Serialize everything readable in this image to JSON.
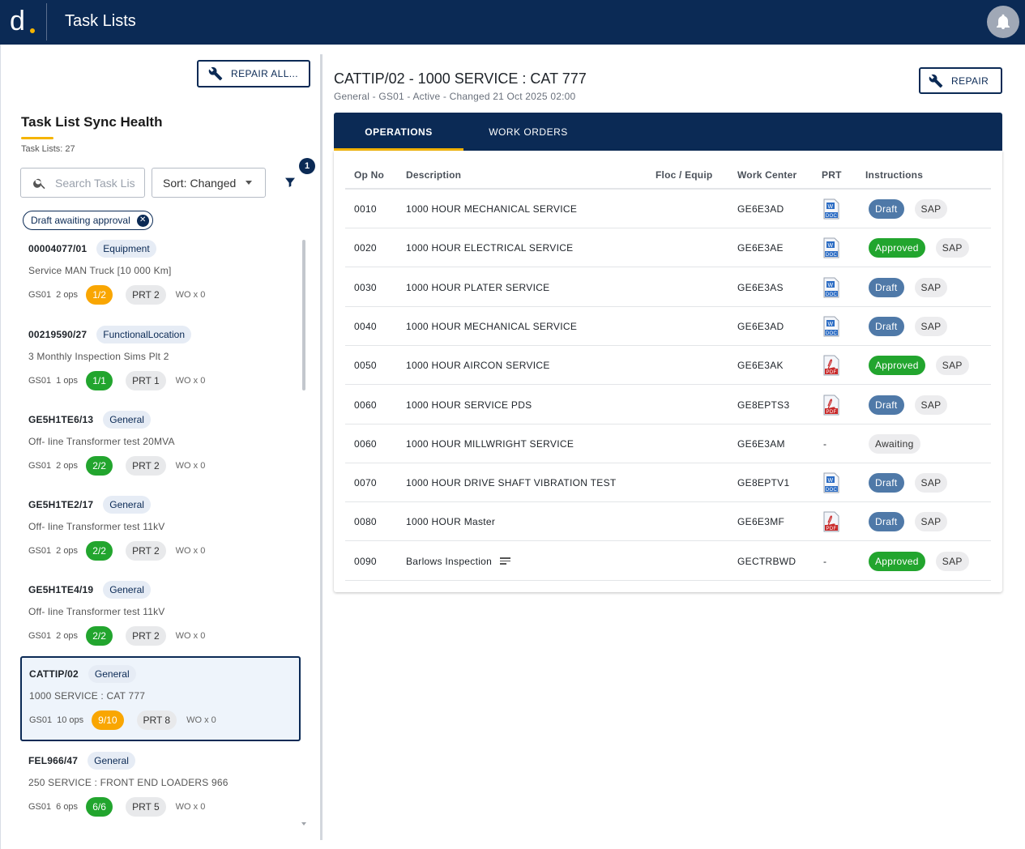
{
  "app": {
    "title": "Task Lists",
    "logo_icon": "d-logo-icon",
    "brand_color": "#0b2a55",
    "accent_color": "#f5b400"
  },
  "left": {
    "repair_all_label": "REPAIR ALL...",
    "sync_title": "Task List Sync Health",
    "task_count": "Task Lists: 27",
    "search_placeholder": "Search Task Lis",
    "sort_label": "Sort: Changed",
    "filter_badge": "1",
    "active_filter": "Draft awaiting approval",
    "cards": [
      {
        "id": "00004077/01",
        "type": "Equipment",
        "desc": "Service MAN Truck [10 000 Km]",
        "plant": "GS01",
        "ops": "2 ops",
        "ratio": "1/2",
        "ratio_color": "orange",
        "prt": "PRT 2",
        "wo": "WO x 0"
      },
      {
        "id": "00219590/27",
        "type": "FunctionalLocation",
        "desc": "3 Monthly Inspection Sims Plt 2",
        "plant": "GS01",
        "ops": "1 ops",
        "ratio": "1/1",
        "ratio_color": "green",
        "prt": "PRT 1",
        "wo": "WO x 0"
      },
      {
        "id": "GE5H1TE6/13",
        "type": "General",
        "desc": "Off- line Transformer test 20MVA",
        "plant": "GS01",
        "ops": "2 ops",
        "ratio": "2/2",
        "ratio_color": "green",
        "prt": "PRT 2",
        "wo": "WO x 0"
      },
      {
        "id": "GE5H1TE2/17",
        "type": "General",
        "desc": "Off- line Transformer test 11kV",
        "plant": "GS01",
        "ops": "2 ops",
        "ratio": "2/2",
        "ratio_color": "green",
        "prt": "PRT 2",
        "wo": "WO x 0"
      },
      {
        "id": "GE5H1TE4/19",
        "type": "General",
        "desc": "Off- line Transformer test 11kV",
        "plant": "GS01",
        "ops": "2 ops",
        "ratio": "2/2",
        "ratio_color": "green",
        "prt": "PRT 2",
        "wo": "WO x 0"
      },
      {
        "id": "CATTIP/02",
        "type": "General",
        "desc": "1000 SERVICE : CAT 777",
        "plant": "GS01",
        "ops": "10 ops",
        "ratio": "9/10",
        "ratio_color": "orange",
        "prt": "PRT 8",
        "wo": "WO x 0",
        "selected": true
      },
      {
        "id": "FEL966/47",
        "type": "General",
        "desc": "250 SERVICE : FRONT END LOADERS 966",
        "plant": "GS01",
        "ops": "6 ops",
        "ratio": "6/6",
        "ratio_color": "green",
        "prt": "PRT 5",
        "wo": "WO x 0"
      }
    ]
  },
  "detail": {
    "title": "CATTIP/02 - 1000 SERVICE : CAT 777",
    "subtitle": "General - GS01 - Active - Changed 21 Oct 2025 02:00",
    "repair_label": "REPAIR",
    "tabs": [
      "OPERATIONS",
      "WORK ORDERS"
    ],
    "columns": [
      "Op No",
      "Description",
      "Floc / Equip",
      "Work Center",
      "PRT",
      "Instructions"
    ],
    "rows": [
      {
        "op": "0010",
        "desc": "1000 HOUR MECHANICAL SERVICE",
        "floc": "",
        "wc": "GE6E3AD",
        "prt": "word",
        "status": "Draft",
        "sap": "SAP"
      },
      {
        "op": "0020",
        "desc": "1000 HOUR ELECTRICAL SERVICE",
        "floc": "",
        "wc": "GE6E3AE",
        "prt": "word",
        "status": "Approved",
        "sap": "SAP"
      },
      {
        "op": "0030",
        "desc": "1000 HOUR PLATER SERVICE",
        "floc": "",
        "wc": "GE6E3AS",
        "prt": "word",
        "status": "Draft",
        "sap": "SAP"
      },
      {
        "op": "0040",
        "desc": "1000 HOUR MECHANICAL SERVICE",
        "floc": "",
        "wc": "GE6E3AD",
        "prt": "word",
        "status": "Draft",
        "sap": "SAP"
      },
      {
        "op": "0050",
        "desc": "1000 HOUR AIRCON SERVICE",
        "floc": "",
        "wc": "GE6E3AK",
        "prt": "pdf",
        "status": "Approved",
        "sap": "SAP"
      },
      {
        "op": "0060",
        "desc": "1000 HOUR SERVICE PDS",
        "floc": "",
        "wc": "GE8EPTS3",
        "prt": "pdf",
        "status": "Draft",
        "sap": "SAP"
      },
      {
        "op": "0060",
        "desc": "1000 HOUR MILLWRIGHT SERVICE",
        "floc": "",
        "wc": "GE6E3AM",
        "prt": "-",
        "status": "Awaiting",
        "sap": ""
      },
      {
        "op": "0070",
        "desc": "1000 HOUR DRIVE SHAFT VIBRATION TEST",
        "floc": "",
        "wc": "GE8EPTV1",
        "prt": "word",
        "status": "Draft",
        "sap": "SAP"
      },
      {
        "op": "0080",
        "desc": "1000 HOUR Master",
        "floc": "",
        "wc": "GE6E3MF",
        "prt": "pdf",
        "status": "Draft",
        "sap": "SAP"
      },
      {
        "op": "0090",
        "desc": "Barlows Inspection",
        "floc": "",
        "wc": "GECTRBWD",
        "prt": "-",
        "status": "Approved",
        "sap": "SAP",
        "has_notes": true
      }
    ],
    "doc_labels": {
      "word": "W",
      "word_sub": "DOC",
      "pdf_sub": "PDF"
    }
  }
}
